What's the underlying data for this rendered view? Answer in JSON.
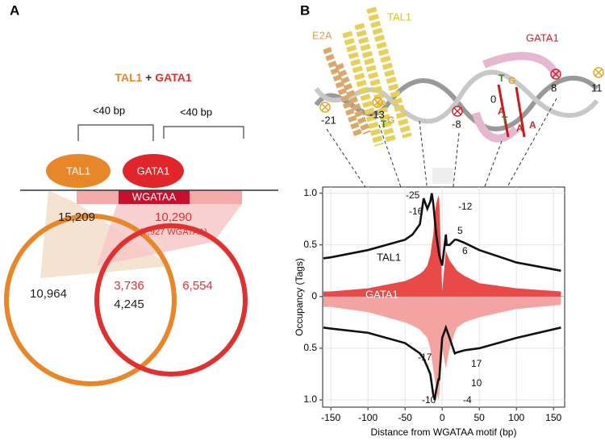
{
  "panel_a": {
    "label": "A",
    "title": {
      "left": "TAL1",
      "plus": "+",
      "right": "GATA1"
    },
    "spacing": [
      "<40 bp",
      "<40 bp"
    ],
    "factors": [
      "TAL1",
      "GATA1"
    ],
    "motif": "WGATAA",
    "counts": {
      "tal1_total": "15,209",
      "gata1_total": "10,290",
      "gata1_motif": "(7,927 WGATAA)",
      "tal1_only": "10,964",
      "overlap": "4,245",
      "overlap_motif": "3,736",
      "gata1_only": "6,554"
    }
  },
  "structure": {
    "label": "B",
    "proteins": [
      "TAL1",
      "E2A",
      "GATA1"
    ],
    "positions": [
      "-21",
      "-13",
      "-8",
      "0",
      "8",
      "11"
    ],
    "bases": [
      "T",
      "G",
      "T",
      "G",
      "T",
      "A",
      "A",
      "A"
    ]
  },
  "chart_data": {
    "type": "line",
    "x_label": "Distance from WGATAA motif (bp)",
    "y_label": "Occupancy (Tags)",
    "x": [
      -160,
      -150,
      -100,
      -50,
      -40,
      -30,
      -25,
      -20,
      -16,
      -14,
      -12,
      -10,
      -8,
      -5,
      -4,
      0,
      5,
      6,
      10,
      17,
      20,
      30,
      50,
      100,
      160
    ],
    "series": [
      {
        "name": "TAL1",
        "color": "#111111",
        "values": [
          0.37,
          0.38,
          0.45,
          0.55,
          0.6,
          0.7,
          0.95,
          0.85,
          0.92,
          1.0,
          0.9,
          0.75,
          0.6,
          0.45,
          0.4,
          0.3,
          0.6,
          0.5,
          0.5,
          0.55,
          0.55,
          0.52,
          0.45,
          0.33,
          0.25
        ]
      },
      {
        "name": "GATA1",
        "color": "#e84a4a",
        "values": [
          0.05,
          0.05,
          0.08,
          0.15,
          0.18,
          0.22,
          0.25,
          0.3,
          0.4,
          0.5,
          0.6,
          0.8,
          0.9,
          0.98,
          0.95,
          0.05,
          0.45,
          0.42,
          0.35,
          0.28,
          0.25,
          0.2,
          0.13,
          0.08,
          0.05
        ]
      },
      {
        "color": "#111111",
        "values": [
          -0.3,
          -0.31,
          -0.35,
          -0.45,
          -0.5,
          -0.55,
          -0.6,
          -0.68,
          -0.75,
          -0.85,
          -0.95,
          -1.0,
          -0.9,
          -0.8,
          -0.8,
          -0.4,
          -0.3,
          -0.32,
          -0.4,
          -0.55,
          -0.54,
          -0.52,
          -0.5,
          -0.4,
          -0.3
        ]
      },
      {
        "color": "#f4a3a3",
        "values": [
          -0.1,
          -0.1,
          -0.15,
          -0.25,
          -0.28,
          -0.32,
          -0.36,
          -0.4,
          -0.5,
          -0.6,
          -0.7,
          -0.8,
          -0.9,
          -1.0,
          -0.95,
          -0.5,
          -0.7,
          -0.65,
          -0.5,
          -0.35,
          -0.3,
          -0.25,
          -0.2,
          -0.12,
          -0.08
        ]
      }
    ],
    "xlim": [
      -161,
      165
    ],
    "ylim": [
      -1.07,
      1.06
    ],
    "xticks": [
      -150,
      -100,
      -50,
      0,
      50,
      100,
      150
    ],
    "yticks": [
      {
        "value": -1,
        "label": "1.0"
      },
      {
        "value": -0.5,
        "label": "0.5"
      },
      0,
      {
        "value": 0.5,
        "label": "0.5"
      },
      {
        "value": 1,
        "label": "1.0"
      }
    ],
    "grid": true,
    "annotations": [
      "-25",
      "-16",
      "-12",
      "5",
      "6",
      "-17",
      "-10",
      "-4",
      "10",
      "17"
    ]
  }
}
